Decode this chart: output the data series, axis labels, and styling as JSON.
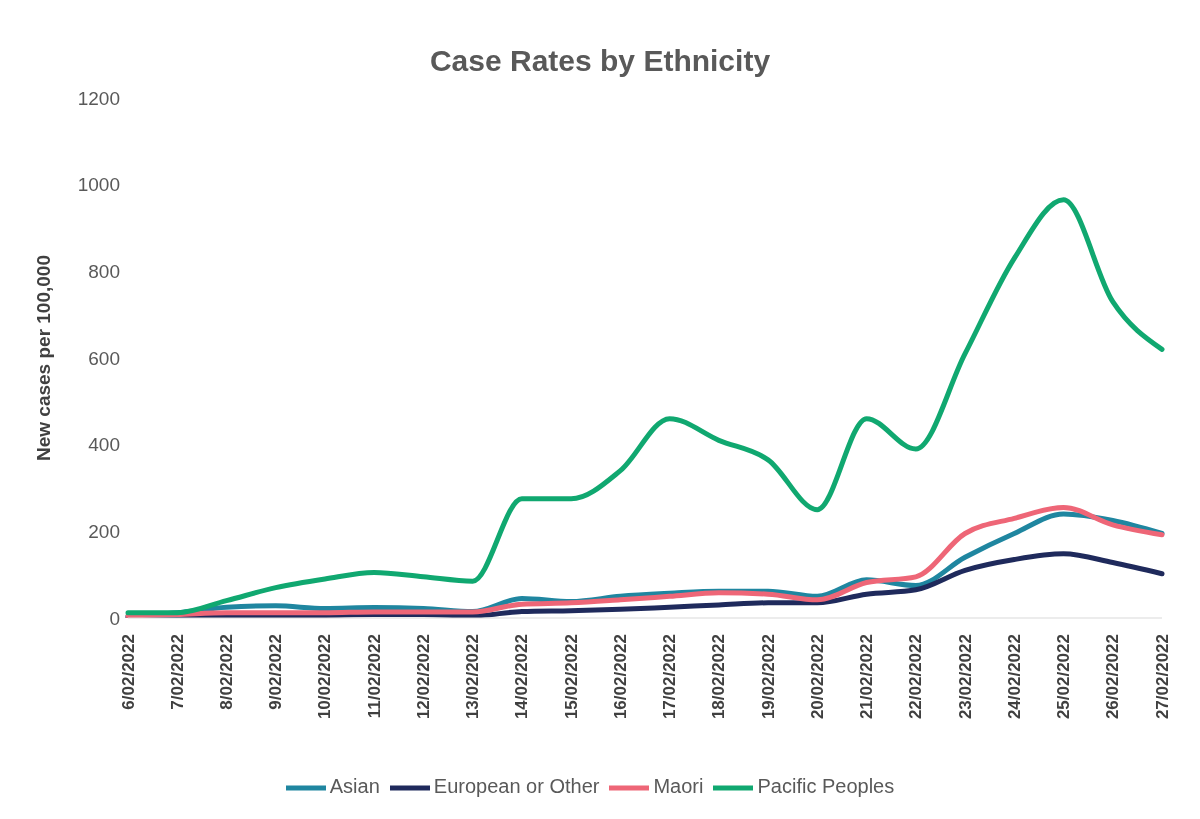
{
  "chart_data": {
    "type": "line",
    "title": "Case Rates by Ethnicity",
    "ylabel": "New cases per 100,000",
    "categories": [
      "6/02/2022",
      "7/02/2022",
      "8/02/2022",
      "9/02/2022",
      "10/02/2022",
      "11/02/2022",
      "12/02/2022",
      "13/02/2022",
      "14/02/2022",
      "15/02/2022",
      "16/02/2022",
      "17/02/2022",
      "18/02/2022",
      "19/02/2022",
      "20/02/2022",
      "21/02/2022",
      "22/02/2022",
      "23/02/2022",
      "24/02/2022",
      "25/02/2022",
      "26/02/2022",
      "27/02/2022"
    ],
    "series": [
      {
        "name": "Asian",
        "color": "#1f86a0",
        "values": [
          5,
          12,
          25,
          28,
          22,
          24,
          22,
          15,
          45,
          38,
          50,
          57,
          62,
          62,
          50,
          88,
          75,
          140,
          195,
          240,
          225,
          195
        ]
      },
      {
        "name": "European or Other",
        "color": "#1f2a5c",
        "values": [
          2,
          3,
          5,
          5,
          6,
          8,
          8,
          5,
          15,
          17,
          20,
          25,
          30,
          35,
          35,
          55,
          65,
          110,
          135,
          148,
          128,
          102
        ]
      },
      {
        "name": "Maori",
        "color": "#ee6677",
        "values": [
          5,
          8,
          12,
          12,
          12,
          14,
          14,
          14,
          32,
          35,
          42,
          50,
          58,
          55,
          42,
          82,
          95,
          195,
          230,
          255,
          215,
          192
        ]
      },
      {
        "name": "Pacific Peoples",
        "color": "#10a870",
        "values": [
          12,
          12,
          40,
          70,
          90,
          105,
          95,
          85,
          275,
          275,
          340,
          460,
          410,
          365,
          250,
          460,
          390,
          610,
          830,
          965,
          730,
          620
        ]
      }
    ],
    "ylim": [
      0,
      1200
    ],
    "yticks": [
      0,
      200,
      400,
      600,
      800,
      1000,
      1200
    ],
    "grid": false,
    "legend": "bottom",
    "marker": "none",
    "line_style": "solid"
  }
}
